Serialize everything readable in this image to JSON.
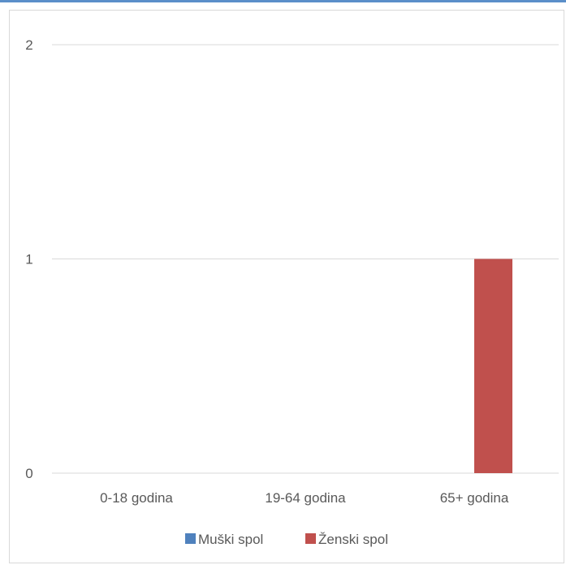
{
  "chart_data": {
    "type": "bar",
    "categories": [
      "0-18 godina",
      "19-64 godina",
      "65+ godina"
    ],
    "series": [
      {
        "name": "Muški spol",
        "color": "#4f81bd",
        "values": [
          0,
          0,
          0
        ]
      },
      {
        "name": "Ženski spol",
        "color": "#c0504d",
        "values": [
          0,
          0,
          1
        ]
      }
    ],
    "ylim": [
      0,
      2
    ],
    "yticks": [
      "0",
      "1",
      "2"
    ],
    "grid": true,
    "legend": "bottom",
    "title": "",
    "xlabel": "",
    "ylabel": ""
  }
}
